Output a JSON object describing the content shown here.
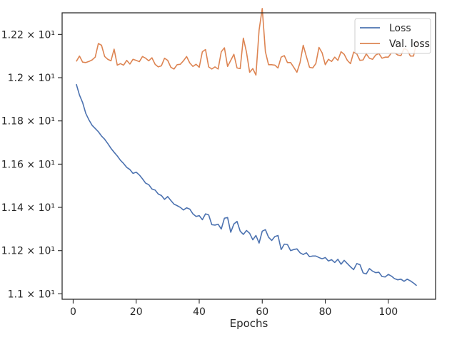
{
  "chart_data": {
    "type": "line",
    "xlabel": "Epochs",
    "ylabel": "",
    "xlim": [
      -3.5,
      115
    ],
    "ylim": [
      10.975,
      12.3
    ],
    "xticks": [
      0,
      20,
      40,
      60,
      80,
      100
    ],
    "yticks": [
      {
        "value": 11.0,
        "label": "1.1 × 10¹"
      },
      {
        "value": 11.2,
        "label": "1.12 × 10¹"
      },
      {
        "value": 11.4,
        "label": "1.14 × 10¹"
      },
      {
        "value": 11.6,
        "label": "1.16 × 10¹"
      },
      {
        "value": 11.8,
        "label": "1.18 × 10¹"
      },
      {
        "value": 12.0,
        "label": "1.2 × 10¹"
      },
      {
        "value": 12.2,
        "label": "1.22 × 10¹"
      }
    ],
    "grid": false,
    "legend_position": "top-right",
    "x_start": 1,
    "series": [
      {
        "name": "Loss",
        "color": "#4c72b0",
        "values": [
          11.97,
          11.92,
          11.885,
          11.835,
          11.805,
          11.78,
          11.765,
          11.75,
          11.73,
          11.715,
          11.695,
          11.673,
          11.655,
          11.638,
          11.618,
          11.603,
          11.585,
          11.575,
          11.557,
          11.563,
          11.55,
          11.532,
          11.512,
          11.505,
          11.485,
          11.48,
          11.462,
          11.455,
          11.437,
          11.45,
          11.432,
          11.415,
          11.408,
          11.4,
          11.388,
          11.398,
          11.392,
          11.37,
          11.358,
          11.362,
          11.343,
          11.37,
          11.365,
          11.32,
          11.318,
          11.322,
          11.3,
          11.35,
          11.353,
          11.285,
          11.323,
          11.335,
          11.29,
          11.275,
          11.293,
          11.28,
          11.25,
          11.27,
          11.235,
          11.29,
          11.297,
          11.262,
          11.247,
          11.265,
          11.27,
          11.205,
          11.23,
          11.228,
          11.2,
          11.205,
          11.208,
          11.19,
          11.182,
          11.19,
          11.172,
          11.175,
          11.175,
          11.168,
          11.162,
          11.168,
          11.152,
          11.158,
          11.145,
          11.16,
          11.137,
          11.155,
          11.14,
          11.125,
          11.112,
          11.14,
          11.135,
          11.097,
          11.092,
          11.117,
          11.105,
          11.098,
          11.1,
          11.08,
          11.078,
          11.09,
          11.082,
          11.07,
          11.065,
          11.068,
          11.058,
          11.068,
          11.06,
          11.05,
          11.038
        ]
      },
      {
        "name": "Val. loss",
        "color": "#dd8452",
        "values": [
          12.075,
          12.1,
          12.072,
          12.07,
          12.075,
          12.082,
          12.095,
          12.158,
          12.15,
          12.098,
          12.085,
          12.078,
          12.132,
          12.058,
          12.065,
          12.058,
          12.08,
          12.063,
          12.085,
          12.08,
          12.074,
          12.098,
          12.09,
          12.078,
          12.092,
          12.062,
          12.05,
          12.055,
          12.09,
          12.08,
          12.048,
          12.04,
          12.06,
          12.062,
          12.078,
          12.098,
          12.068,
          12.052,
          12.062,
          12.048,
          12.12,
          12.13,
          12.05,
          12.04,
          12.05,
          12.04,
          12.12,
          12.138,
          12.052,
          12.08,
          12.108,
          12.045,
          12.042,
          12.183,
          12.118,
          12.025,
          12.042,
          12.012,
          12.22,
          12.32,
          12.12,
          12.06,
          12.06,
          12.058,
          12.045,
          12.095,
          12.102,
          12.07,
          12.07,
          12.048,
          12.025,
          12.07,
          12.15,
          12.098,
          12.048,
          12.045,
          12.065,
          12.14,
          12.115,
          12.06,
          12.085,
          12.075,
          12.095,
          12.08,
          12.12,
          12.108,
          12.08,
          12.065,
          12.118,
          12.11,
          12.08,
          12.082,
          12.11,
          12.09,
          12.085,
          12.105,
          12.112,
          12.09,
          12.095,
          12.095,
          12.115,
          12.115,
          12.105,
          12.102,
          12.135,
          12.128,
          12.1,
          12.1,
          12.165
        ]
      }
    ]
  }
}
